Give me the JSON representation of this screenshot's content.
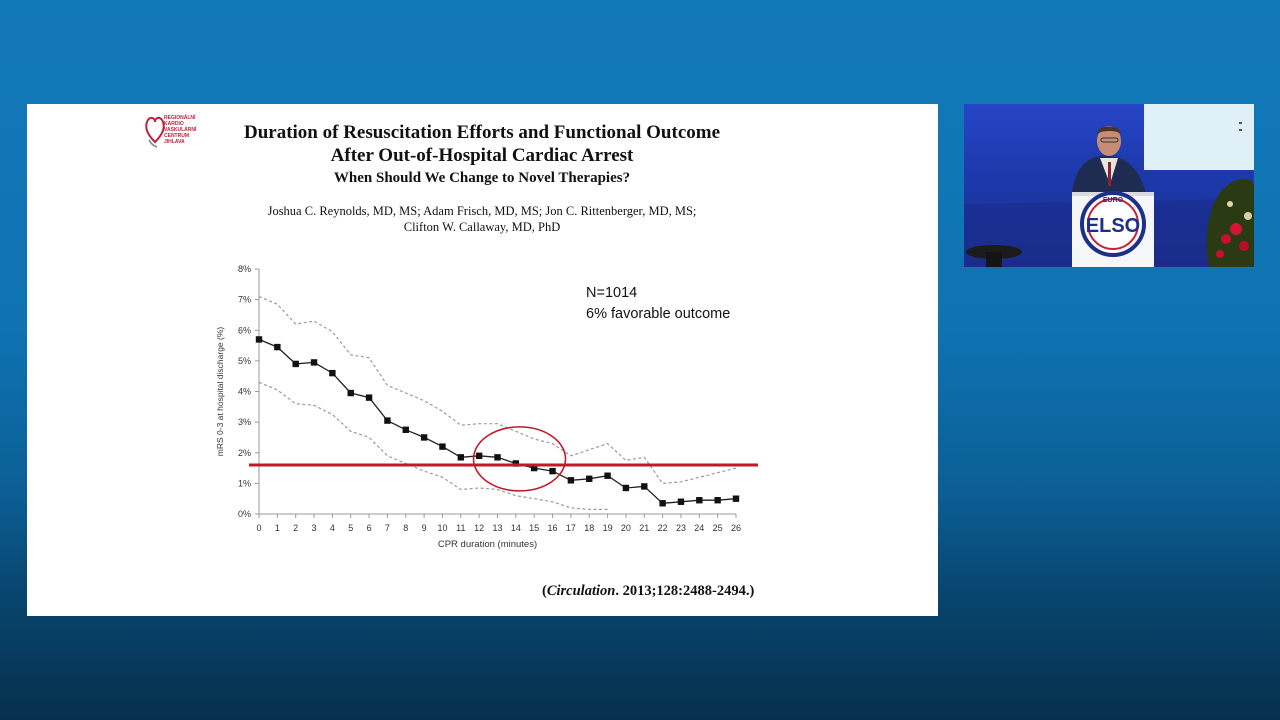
{
  "slide": {
    "logo_text": "REGIONÁLNÍ\nKARDIO\nVASKULÁRNÍ\nCENTRUM\nJIHLAVA",
    "title_line1": "Duration of Resuscitation Efforts and Functional Outcome",
    "title_line2": "After Out-of-Hospital Cardiac Arrest",
    "subtitle": "When Should We Change to Novel Therapies?",
    "authors_line1": "Joshua C. Reynolds, MD, MS; Adam Frisch, MD, MS; Jon C. Rittenberger, MD, MS;",
    "authors_line2": "Clifton W. Callaway, MD, PhD",
    "citation_journal": "Circulation",
    "citation_rest": ". 2013;128:2488-2494.)",
    "citation_open": "("
  },
  "colors": {
    "background": "#0f73b2",
    "slide": "#ffffff",
    "threshold_line": "#c0192c",
    "series_line": "#222222",
    "ci_line": "#9a9a9a"
  },
  "chart_data": {
    "type": "line",
    "xlabel": "CPR duration (minutes)",
    "ylabel": "mRS 0-3 at hospital discharge (%)",
    "x": [
      0,
      1,
      2,
      3,
      4,
      5,
      6,
      7,
      8,
      9,
      10,
      11,
      12,
      13,
      14,
      15,
      16,
      17,
      18,
      19,
      20,
      21,
      22,
      23,
      24,
      25,
      26
    ],
    "x_tick_labels": [
      "0",
      "1",
      "2",
      "3",
      "4",
      "5",
      "6",
      "7",
      "8",
      "9",
      "10",
      "11",
      "12",
      "13",
      "14",
      "15",
      "16",
      "17",
      "18",
      "19",
      "20",
      "21",
      "22",
      "23",
      "24",
      "25",
      "26"
    ],
    "y_tick_labels": [
      "0%",
      "1%",
      "2%",
      "3%",
      "4%",
      "5%",
      "6%",
      "7%",
      "8%"
    ],
    "ylim": [
      0,
      8
    ],
    "xlim": [
      0,
      26
    ],
    "series": [
      {
        "values": [
          5.7,
          5.45,
          4.9,
          4.95,
          4.6,
          3.95,
          3.8,
          3.05,
          2.75,
          2.5,
          2.2,
          1.85,
          1.9,
          1.85,
          1.65,
          1.5,
          1.4,
          1.1,
          1.15,
          1.25,
          0.85,
          0.9,
          0.35,
          0.4,
          0.45,
          0.45,
          0.5
        ]
      },
      {
        "values": [
          7.1,
          6.85,
          6.2,
          6.3,
          5.95,
          5.2,
          5.1,
          4.2,
          3.95,
          3.7,
          3.35,
          2.9,
          2.95,
          2.95,
          2.7,
          2.45,
          2.3,
          1.9,
          2.1,
          2.3,
          1.75,
          1.85,
          1.0,
          1.05,
          1.2,
          1.35,
          1.5
        ]
      },
      {
        "values": [
          4.3,
          4.05,
          3.6,
          3.55,
          3.25,
          2.7,
          2.5,
          1.9,
          1.65,
          1.4,
          1.2,
          0.8,
          0.85,
          0.8,
          0.6,
          0.5,
          0.4,
          0.2,
          0.15,
          0.15,
          null,
          null,
          null,
          null,
          null,
          null,
          null
        ]
      }
    ],
    "reference_line_y": 1.6,
    "annotations": [
      "N=1014",
      "6% favorable outcome"
    ],
    "highlight_ellipse_x_center": 14.2,
    "highlight_ellipse_y_center": 1.8,
    "grid": false
  }
}
